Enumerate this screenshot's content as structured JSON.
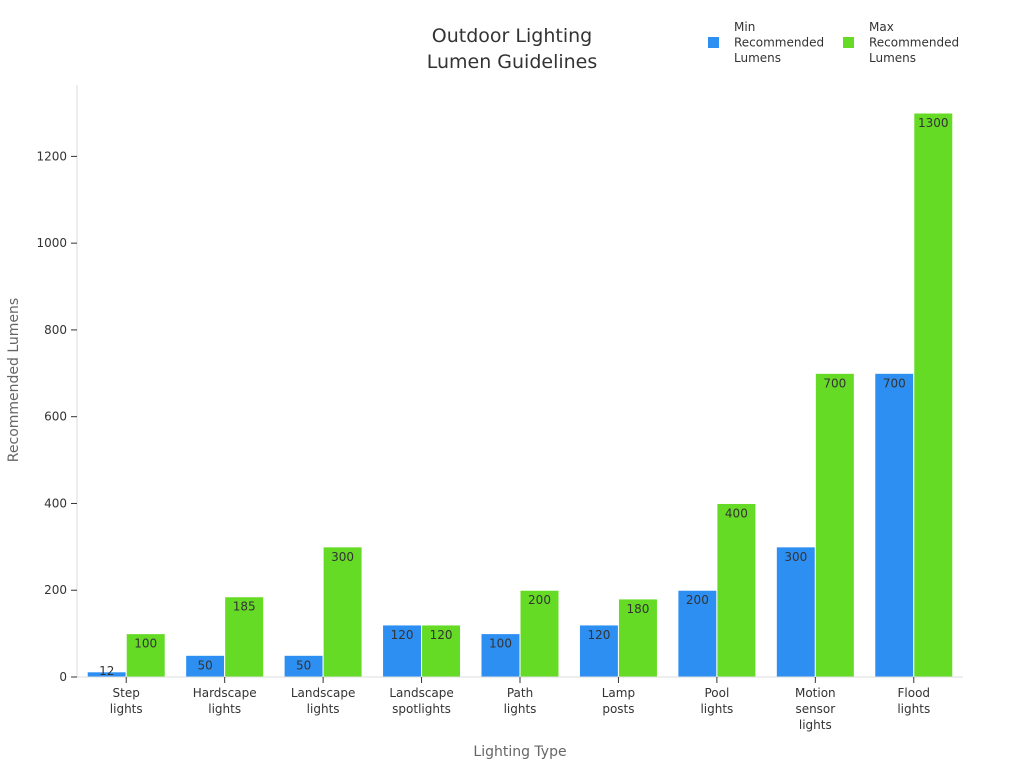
{
  "chart_data": {
    "type": "bar",
    "title": [
      "Outdoor Lighting",
      "Lumen Guidelines"
    ],
    "xlabel": "Lighting Type",
    "ylabel": "Recommended Lumens",
    "ylim": [
      0,
      1300
    ],
    "yticks": [
      0,
      200,
      400,
      600,
      800,
      1000,
      1200
    ],
    "grid": false,
    "legend_position": "top-right",
    "categories": [
      [
        "Step",
        "lights"
      ],
      [
        "Hardscape",
        "lights"
      ],
      [
        "Landscape",
        "lights"
      ],
      [
        "Landscape",
        "spotlights"
      ],
      [
        "Path",
        "lights"
      ],
      [
        "Lamp",
        "posts"
      ],
      [
        "Pool",
        "lights"
      ],
      [
        "Motion",
        "sensor",
        "lights"
      ],
      [
        "Flood",
        "lights"
      ]
    ],
    "series": [
      {
        "name": [
          "Min",
          "Recommended",
          "Lumens"
        ],
        "color": "#2e8ff2",
        "values": [
          12,
          50,
          50,
          120,
          100,
          120,
          200,
          300,
          700
        ]
      },
      {
        "name": [
          "Max",
          "Recommended",
          "Lumens"
        ],
        "color": "#66db26",
        "values": [
          100,
          185,
          300,
          120,
          200,
          180,
          400,
          700,
          1300
        ]
      }
    ]
  }
}
